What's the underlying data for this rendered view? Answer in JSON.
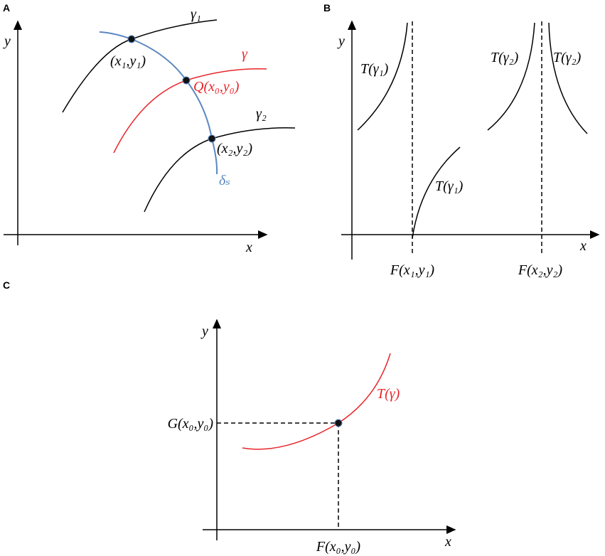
{
  "panels": [
    {
      "label": "A",
      "y_axis": "y",
      "x_axis": "x",
      "curves": {
        "gamma1": "γ₁",
        "gamma": "γ",
        "gamma2": "γ₂",
        "delta": "δₛ"
      },
      "points": [
        "(x₁,y₁)",
        "Q(x₀,y₀)",
        "(x₂,y₂)"
      ]
    },
    {
      "label": "B",
      "y_axis": "y",
      "x_axis": "x",
      "curves": [
        "T(γ₁)",
        "T(γ₁)",
        "T(γ₂)",
        "T(γ₂)"
      ],
      "x_marks": [
        "F(x₁,y₁)",
        "F(x₂,y₂)"
      ]
    },
    {
      "label": "C",
      "y_axis": "y",
      "x_axis": "x",
      "curve": "T(γ)",
      "y_mark": "G(x₀,y₀)",
      "x_mark": "F(x₀,y₀)"
    }
  ]
}
